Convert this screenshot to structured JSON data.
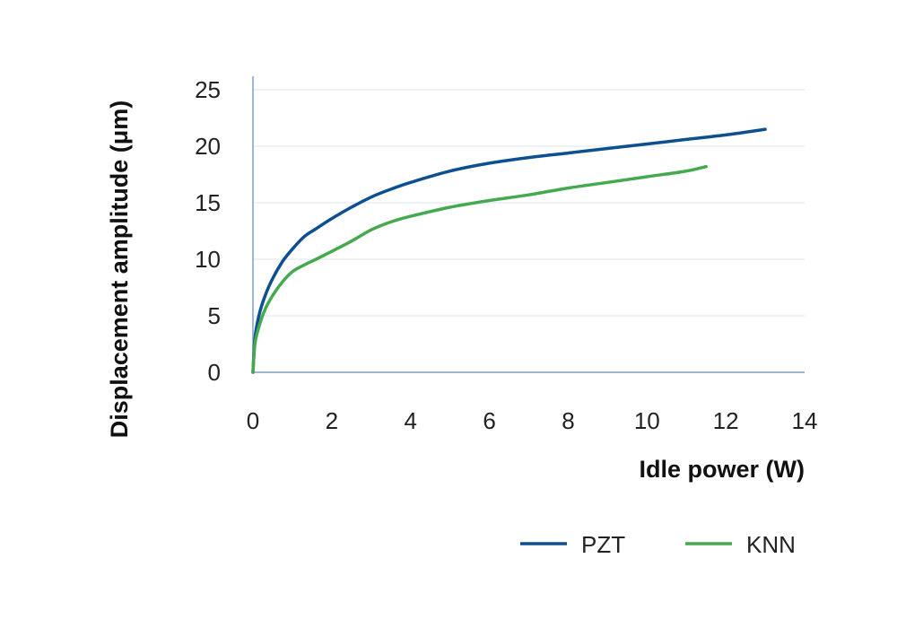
{
  "chart_data": {
    "type": "line",
    "title": "",
    "xlabel": "Idle power (W)",
    "ylabel": "Displacement amplitude (μm)",
    "xlim": [
      0,
      14
    ],
    "ylim": [
      0,
      25
    ],
    "x_ticks": [
      "0",
      "2",
      "4",
      "6",
      "8",
      "10",
      "12",
      "14"
    ],
    "y_ticks": [
      "0",
      "5",
      "10",
      "15",
      "20",
      "25"
    ],
    "grid": "horizontal",
    "legend_position": "bottom-right",
    "series": [
      {
        "name": "PZT",
        "color": "#0d4f8f",
        "x": [
          0,
          0.05,
          0.15,
          0.3,
          0.5,
          0.75,
          1.0,
          1.3,
          1.6,
          2.0,
          2.5,
          3.0,
          3.5,
          4.0,
          5.0,
          6.0,
          7.0,
          8.0,
          9.0,
          10.0,
          11.0,
          12.0,
          13.0
        ],
        "values": [
          0,
          3.0,
          5.0,
          6.7,
          8.3,
          9.8,
          10.9,
          12.0,
          12.7,
          13.6,
          14.6,
          15.5,
          16.2,
          16.8,
          17.8,
          18.5,
          19.0,
          19.4,
          19.8,
          20.2,
          20.6,
          21.0,
          21.5
        ]
      },
      {
        "name": "KNN",
        "color": "#45a94f",
        "x": [
          0,
          0.05,
          0.15,
          0.3,
          0.5,
          0.75,
          1.0,
          1.3,
          1.6,
          2.0,
          2.5,
          3.0,
          3.5,
          4.0,
          5.0,
          6.0,
          7.0,
          8.0,
          9.0,
          10.0,
          11.0,
          11.5
        ],
        "values": [
          0,
          2.5,
          4.0,
          5.5,
          6.8,
          8.0,
          8.9,
          9.5,
          10.0,
          10.7,
          11.6,
          12.6,
          13.3,
          13.8,
          14.6,
          15.2,
          15.7,
          16.3,
          16.8,
          17.3,
          17.8,
          18.2
        ]
      }
    ]
  },
  "colors": {
    "axis": "#9fb6d8",
    "grid": "#dde4f0"
  }
}
